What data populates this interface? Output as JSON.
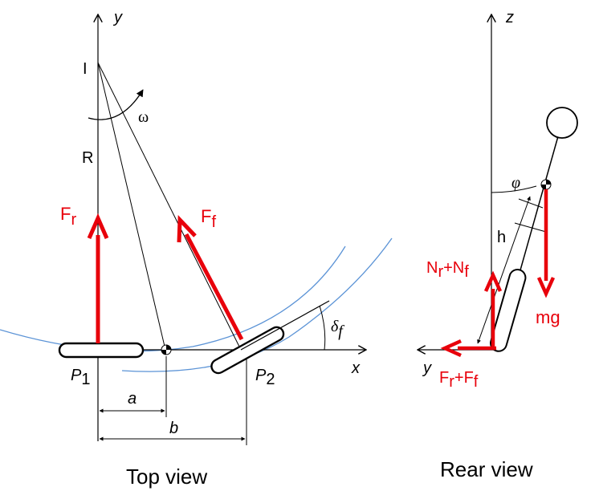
{
  "colors": {
    "force": "#e8000b",
    "arc": "#5b93d6",
    "line": "#000000"
  },
  "top_view": {
    "caption": "Top view",
    "axes": {
      "y": "y",
      "x": "x"
    },
    "center": "I",
    "omega": "ω",
    "radius": "R",
    "rear_force": {
      "main": "F",
      "sub": "r"
    },
    "front_force": {
      "main": "F",
      "sub": "f"
    },
    "rear_contact": {
      "main": "P",
      "sub": "1"
    },
    "front_contact": {
      "main": "P",
      "sub": "2"
    },
    "dim_a": "a",
    "dim_b": "b",
    "steer_angle": {
      "main": "δ",
      "sub": "f"
    }
  },
  "rear_view": {
    "caption": "Rear view",
    "axes": {
      "z": "z",
      "y": "y"
    },
    "lean_angle": "φ",
    "height": "h",
    "normal_force": {
      "n1": "N",
      "s1": "r",
      "plus": "+N",
      "s2": "f"
    },
    "lateral_force": {
      "f1": "F",
      "s1": "r",
      "plus": "+F",
      "s2": "f"
    },
    "weight": "mg"
  }
}
